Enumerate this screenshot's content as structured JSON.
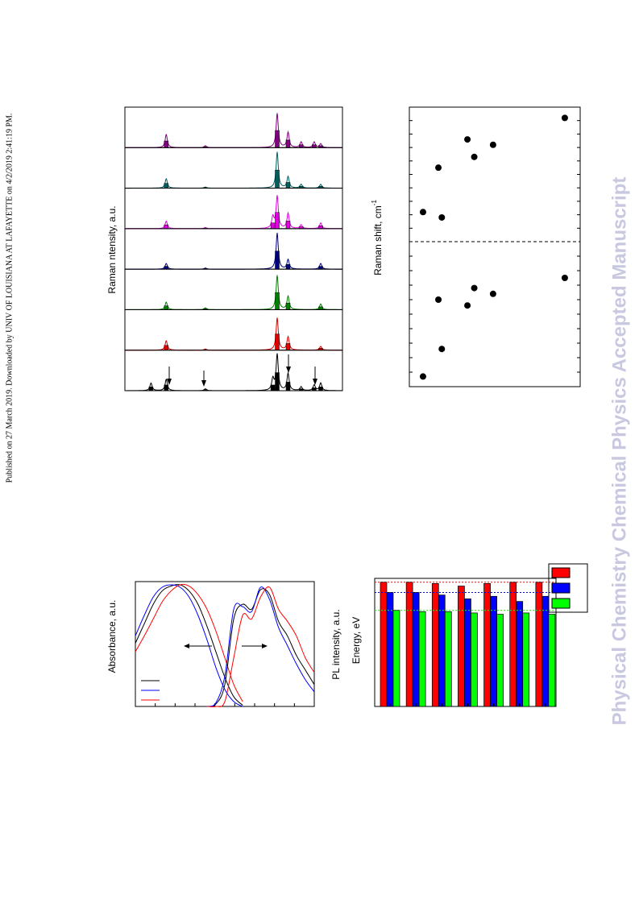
{
  "header": {
    "notice": "Published on 27 March 2019. Downloaded by UNIV OF LOUISIANA AT LAFAYETTE on 4/2/2019 2:41:19 PM.",
    "watermark": "Physical Chemistry Chemical Physics Accepted Manuscript"
  },
  "raman": {
    "ylabel": "Raman ntensity, a.u.",
    "xlim": [
      0,
      100
    ],
    "ylim": [
      0,
      1
    ],
    "panels": [
      {
        "color": "#800080",
        "x": [
          19,
          37,
          70,
          75,
          81,
          87,
          90
        ],
        "values": [
          0.35,
          0.05,
          0.9,
          0.4,
          0.15,
          0.15,
          0.1
        ]
      },
      {
        "color": "#006060",
        "x": [
          19,
          37,
          70,
          75,
          81,
          90
        ],
        "values": [
          0.25,
          0.03,
          0.95,
          0.3,
          0.1,
          0.1
        ]
      },
      {
        "color": "#e000e0",
        "x": [
          19,
          37,
          68,
          70,
          75,
          81,
          90
        ],
        "values": [
          0.2,
          0.03,
          0.3,
          0.85,
          0.4,
          0.1,
          0.15
        ]
      },
      {
        "color": "#000080",
        "x": [
          19,
          37,
          70,
          75,
          90
        ],
        "values": [
          0.15,
          0.03,
          0.95,
          0.25,
          0.15
        ]
      },
      {
        "color": "#008000",
        "x": [
          19,
          37,
          70,
          75,
          90
        ],
        "values": [
          0.2,
          0.05,
          0.9,
          0.35,
          0.15
        ]
      },
      {
        "color": "#e00000",
        "x": [
          19,
          37,
          70,
          75,
          90
        ],
        "values": [
          0.25,
          0.03,
          0.85,
          0.35,
          0.1
        ]
      },
      {
        "color": "#000000",
        "x": [
          12,
          19,
          37,
          68,
          70,
          75,
          81,
          87,
          90
        ],
        "values": [
          0.2,
          0.3,
          0.05,
          0.3,
          0.95,
          0.45,
          0.1,
          0.15,
          0.2
        ]
      }
    ]
  },
  "shift": {
    "ylabel": "Raman shift, cm",
    "ylabel_sup": "-1",
    "xlim": [
      0,
      100
    ],
    "ylim": [
      0,
      100
    ],
    "color": "#000000",
    "panels": [
      {
        "x": [
          91,
          34,
          49,
          38,
          17,
          8,
          19
        ],
        "values": [
          92,
          76,
          72,
          63,
          55,
          22,
          18
        ]
      },
      {
        "x": [
          91,
          38,
          49,
          17,
          34,
          19,
          8
        ],
        "values": [
          75,
          68,
          64,
          60,
          56,
          26,
          7
        ]
      }
    ]
  },
  "absorbance": {
    "ylabel": "Absorbance, a.u.",
    "xlim": [
      0,
      100
    ],
    "ylim": [
      0,
      100
    ],
    "series": [
      {
        "color": "#000000",
        "x": [
          0,
          5,
          10,
          15,
          20,
          25,
          30,
          35,
          40,
          45,
          50,
          55,
          60
        ],
        "values": [
          52,
          68,
          84,
          95,
          99,
          100,
          95,
          84,
          66,
          45,
          24,
          8,
          1
        ]
      },
      {
        "color": "#0000ff",
        "x": [
          0,
          5,
          10,
          15,
          20,
          25,
          30,
          35,
          40,
          45,
          50,
          55,
          60
        ],
        "values": [
          58,
          75,
          90,
          98,
          100,
          98,
          90,
          75,
          55,
          32,
          14,
          4,
          0
        ]
      },
      {
        "color": "#ff0000",
        "x": [
          0,
          5,
          10,
          15,
          20,
          25,
          30,
          35,
          40,
          45,
          50,
          55,
          60
        ],
        "values": [
          45,
          58,
          72,
          86,
          95,
          100,
          99,
          92,
          80,
          62,
          40,
          18,
          4
        ]
      },
      {
        "color": "#000000",
        "x": [
          40,
          45,
          50,
          55,
          60,
          65,
          70,
          75,
          80,
          85,
          90,
          95,
          100
        ],
        "values": [
          0,
          2,
          18,
          72,
          84,
          80,
          96,
          92,
          70,
          58,
          42,
          30,
          18
        ]
      },
      {
        "color": "#0000ff",
        "x": [
          40,
          45,
          50,
          55,
          60,
          65,
          70,
          75,
          80,
          85,
          90,
          95,
          100
        ],
        "values": [
          0,
          3,
          25,
          80,
          82,
          78,
          98,
          88,
          65,
          50,
          35,
          22,
          12
        ]
      },
      {
        "color": "#ff0000",
        "x": [
          40,
          45,
          50,
          55,
          60,
          65,
          70,
          75,
          80,
          85,
          90,
          95,
          100
        ],
        "values": [
          0,
          0,
          4,
          40,
          75,
          72,
          90,
          98,
          80,
          70,
          58,
          40,
          28
        ]
      }
    ]
  },
  "energy": {
    "type": "bar",
    "ylabel": "PL intensity, a.u.",
    "y2label": "Energy, eV",
    "ylim": [
      0,
      100
    ],
    "series": [
      {
        "color": "#ff0000",
        "values": [
          97,
          97,
          96,
          94,
          96,
          97,
          97
        ],
        "reference": 97
      },
      {
        "color": "#0000ff",
        "values": [
          89,
          89,
          87,
          84,
          86,
          82,
          86
        ],
        "reference": 89
      },
      {
        "color": "#00ff00",
        "values": [
          75,
          74,
          74,
          73,
          72,
          73,
          72
        ],
        "reference": 75
      }
    ]
  }
}
